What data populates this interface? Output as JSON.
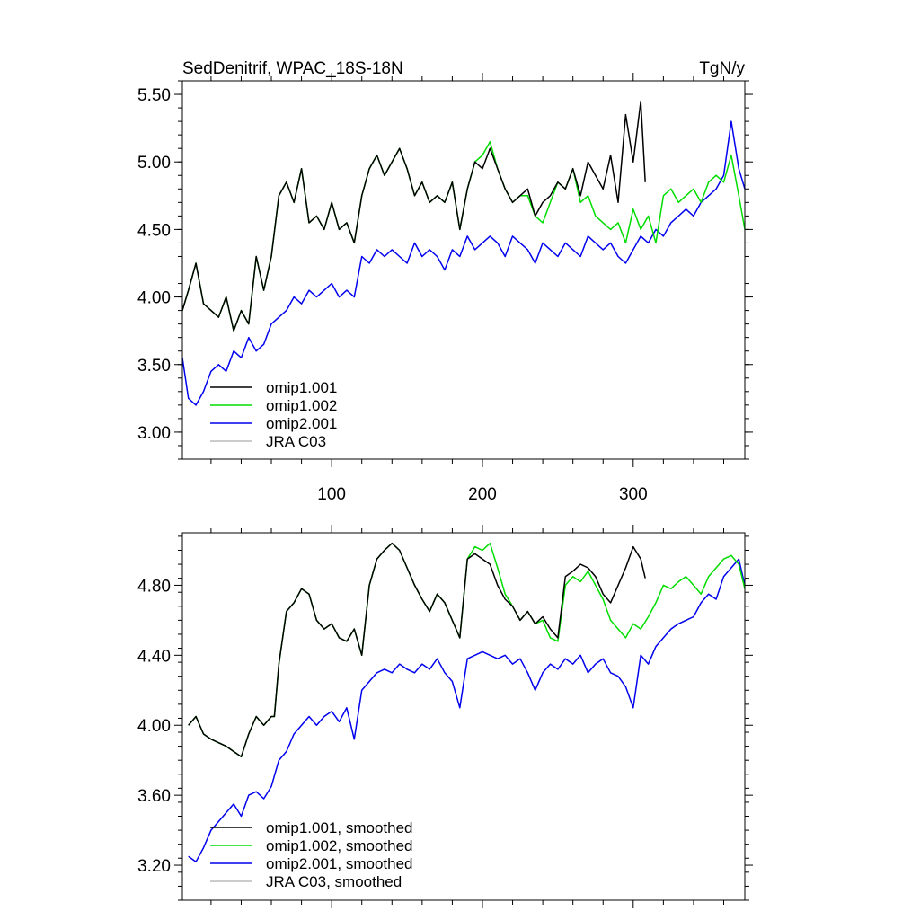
{
  "colors": {
    "omip1_001": "#000000",
    "omip1_002": "#00dd00",
    "omip2_001": "#0000ee",
    "jra_c03": "#bbbbbb"
  },
  "chart_data": [
    {
      "type": "line",
      "title": "SedDenitrif, WPAC_18S-18N",
      "units": "TgN/y",
      "xlim": [
        1,
        374
      ],
      "ylim": [
        2.8,
        5.6
      ],
      "xticks": [
        100,
        200,
        300
      ],
      "xtick_labels": [
        "100",
        "200",
        "300"
      ],
      "yticks": [
        3.0,
        3.5,
        4.0,
        4.5,
        5.0,
        5.5
      ],
      "ytick_labels": [
        "3.00",
        "3.50",
        "4.00",
        "4.50",
        "5.00",
        "5.50"
      ],
      "legend_position": "bottom-left",
      "series": [
        {
          "name": "omip1.001",
          "color_key": "omip1_001",
          "x": [
            1,
            5,
            10,
            15,
            20,
            25,
            30,
            35,
            40,
            45,
            50,
            55,
            60,
            65,
            70,
            75,
            80,
            85,
            90,
            95,
            100,
            105,
            110,
            115,
            120,
            125,
            130,
            135,
            140,
            145,
            150,
            155,
            160,
            165,
            170,
            175,
            180,
            185,
            190,
            195,
            200,
            205,
            210,
            215,
            220,
            225,
            230,
            235,
            240,
            245,
            250,
            255,
            260,
            265,
            270,
            275,
            280,
            285,
            290,
            295,
            300,
            305,
            308
          ],
          "y": [
            3.9,
            4.05,
            4.25,
            3.95,
            3.9,
            3.85,
            4.0,
            3.75,
            3.9,
            3.8,
            4.3,
            4.05,
            4.3,
            4.75,
            4.85,
            4.7,
            4.95,
            4.55,
            4.6,
            4.5,
            4.7,
            4.5,
            4.55,
            4.4,
            4.75,
            4.95,
            5.05,
            4.9,
            5.0,
            5.1,
            4.95,
            4.75,
            4.85,
            4.7,
            4.75,
            4.7,
            4.85,
            4.5,
            4.8,
            5.0,
            4.95,
            5.1,
            4.95,
            4.8,
            4.7,
            4.75,
            4.8,
            4.6,
            4.7,
            4.75,
            4.85,
            4.8,
            4.95,
            4.75,
            5.0,
            4.9,
            4.8,
            5.05,
            4.7,
            5.35,
            5.0,
            5.45,
            4.85
          ]
        },
        {
          "name": "omip1.002",
          "color_key": "omip1_002",
          "x": [
            1,
            5,
            10,
            15,
            20,
            25,
            30,
            35,
            40,
            45,
            50,
            55,
            60,
            65,
            70,
            75,
            80,
            85,
            90,
            95,
            100,
            105,
            110,
            115,
            120,
            125,
            130,
            135,
            140,
            145,
            150,
            155,
            160,
            165,
            170,
            175,
            180,
            185,
            190,
            195,
            200,
            205,
            210,
            215,
            220,
            225,
            230,
            235,
            240,
            245,
            250,
            255,
            260,
            265,
            270,
            275,
            280,
            285,
            290,
            295,
            300,
            305,
            310,
            315,
            320,
            325,
            330,
            335,
            340,
            345,
            350,
            355,
            360,
            365,
            370,
            374
          ],
          "y": [
            3.9,
            4.05,
            4.25,
            3.95,
            3.9,
            3.85,
            4.0,
            3.75,
            3.9,
            3.8,
            4.3,
            4.05,
            4.3,
            4.75,
            4.85,
            4.7,
            4.95,
            4.55,
            4.6,
            4.5,
            4.7,
            4.5,
            4.55,
            4.4,
            4.75,
            4.95,
            5.05,
            4.9,
            5.0,
            5.1,
            4.95,
            4.75,
            4.85,
            4.7,
            4.75,
            4.7,
            4.85,
            4.5,
            4.8,
            5.0,
            5.05,
            5.15,
            4.95,
            4.8,
            4.7,
            4.75,
            4.75,
            4.6,
            4.55,
            4.7,
            4.85,
            4.8,
            4.95,
            4.7,
            4.75,
            4.6,
            4.55,
            4.5,
            4.55,
            4.4,
            4.65,
            4.5,
            4.6,
            4.4,
            4.75,
            4.8,
            4.7,
            4.75,
            4.8,
            4.7,
            4.85,
            4.9,
            4.85,
            5.05,
            4.75,
            4.5
          ]
        },
        {
          "name": "omip2.001",
          "color_key": "omip2_001",
          "x": [
            1,
            5,
            10,
            15,
            20,
            25,
            30,
            35,
            40,
            45,
            50,
            55,
            60,
            65,
            70,
            75,
            80,
            85,
            90,
            95,
            100,
            105,
            110,
            115,
            120,
            125,
            130,
            135,
            140,
            145,
            150,
            155,
            160,
            165,
            170,
            175,
            180,
            185,
            190,
            195,
            200,
            205,
            210,
            215,
            220,
            225,
            230,
            235,
            240,
            245,
            250,
            255,
            260,
            265,
            270,
            275,
            280,
            285,
            290,
            295,
            300,
            305,
            310,
            315,
            320,
            325,
            330,
            335,
            340,
            345,
            350,
            355,
            360,
            365,
            370,
            374
          ],
          "y": [
            3.55,
            3.25,
            3.2,
            3.3,
            3.45,
            3.5,
            3.45,
            3.6,
            3.55,
            3.7,
            3.6,
            3.65,
            3.8,
            3.85,
            3.9,
            4.0,
            3.95,
            4.05,
            4.0,
            4.05,
            4.1,
            4.0,
            4.05,
            4.0,
            4.3,
            4.25,
            4.35,
            4.3,
            4.35,
            4.3,
            4.25,
            4.4,
            4.3,
            4.35,
            4.3,
            4.2,
            4.35,
            4.3,
            4.45,
            4.35,
            4.4,
            4.45,
            4.4,
            4.3,
            4.45,
            4.4,
            4.35,
            4.25,
            4.4,
            4.35,
            4.3,
            4.4,
            4.35,
            4.3,
            4.45,
            4.4,
            4.35,
            4.4,
            4.3,
            4.25,
            4.35,
            4.45,
            4.4,
            4.5,
            4.45,
            4.55,
            4.6,
            4.65,
            4.6,
            4.7,
            4.75,
            4.8,
            4.9,
            5.3,
            4.95,
            4.8
          ]
        }
      ]
    },
    {
      "type": "line",
      "title": "",
      "xlim": [
        1,
        374
      ],
      "ylim": [
        3.0,
        5.1
      ],
      "xticks": [
        100,
        200,
        300
      ],
      "yticks": [
        3.2,
        3.6,
        4.0,
        4.4,
        4.8
      ],
      "ytick_labels": [
        "3.20",
        "3.60",
        "4.00",
        "4.40",
        "4.80"
      ],
      "legend_position": "bottom-left",
      "series": [
        {
          "name": "omip1.001, smoothed",
          "color_key": "omip1_001",
          "x": [
            5,
            10,
            15,
            20,
            25,
            30,
            35,
            40,
            45,
            50,
            55,
            60,
            62,
            65,
            70,
            75,
            80,
            85,
            90,
            95,
            100,
            105,
            110,
            115,
            120,
            125,
            130,
            135,
            140,
            145,
            150,
            155,
            160,
            165,
            170,
            175,
            180,
            185,
            190,
            195,
            200,
            205,
            210,
            215,
            220,
            225,
            230,
            235,
            240,
            245,
            250,
            255,
            260,
            265,
            270,
            275,
            280,
            285,
            290,
            295,
            300,
            305,
            308
          ],
          "y": [
            4.0,
            4.05,
            3.95,
            3.92,
            3.9,
            3.88,
            3.85,
            3.82,
            3.95,
            4.05,
            4.0,
            4.05,
            4.05,
            4.35,
            4.65,
            4.7,
            4.78,
            4.75,
            4.6,
            4.55,
            4.58,
            4.5,
            4.48,
            4.55,
            4.4,
            4.8,
            4.95,
            5.0,
            5.04,
            5.0,
            4.9,
            4.8,
            4.72,
            4.65,
            4.75,
            4.7,
            4.6,
            4.5,
            4.95,
            4.98,
            4.95,
            4.92,
            4.8,
            4.72,
            4.68,
            4.6,
            4.65,
            4.58,
            4.62,
            4.55,
            4.5,
            4.85,
            4.88,
            4.92,
            4.9,
            4.85,
            4.75,
            4.7,
            4.8,
            4.9,
            5.02,
            4.95,
            4.84
          ]
        },
        {
          "name": "omip1.002, smoothed",
          "color_key": "omip1_002",
          "x": [
            5,
            10,
            15,
            20,
            25,
            30,
            35,
            40,
            45,
            50,
            55,
            60,
            62,
            65,
            70,
            75,
            80,
            85,
            90,
            95,
            100,
            105,
            110,
            115,
            120,
            125,
            130,
            135,
            140,
            145,
            150,
            155,
            160,
            165,
            170,
            175,
            180,
            185,
            190,
            195,
            200,
            205,
            210,
            215,
            220,
            225,
            230,
            235,
            240,
            245,
            250,
            255,
            260,
            265,
            270,
            275,
            280,
            285,
            290,
            295,
            300,
            305,
            310,
            315,
            320,
            325,
            330,
            335,
            340,
            345,
            350,
            355,
            360,
            365,
            370,
            374
          ],
          "y": [
            4.0,
            4.05,
            3.95,
            3.92,
            3.9,
            3.88,
            3.85,
            3.82,
            3.95,
            4.05,
            4.0,
            4.05,
            4.05,
            4.35,
            4.65,
            4.7,
            4.78,
            4.75,
            4.6,
            4.55,
            4.58,
            4.5,
            4.48,
            4.55,
            4.4,
            4.8,
            4.95,
            5.0,
            5.04,
            5.0,
            4.9,
            4.8,
            4.72,
            4.65,
            4.75,
            4.7,
            4.6,
            4.5,
            4.95,
            5.02,
            5.0,
            5.04,
            4.9,
            4.75,
            4.68,
            4.6,
            4.65,
            4.58,
            4.6,
            4.5,
            4.48,
            4.8,
            4.85,
            4.82,
            4.88,
            4.8,
            4.72,
            4.6,
            4.55,
            4.5,
            4.58,
            4.55,
            4.62,
            4.7,
            4.8,
            4.78,
            4.82,
            4.85,
            4.8,
            4.75,
            4.85,
            4.9,
            4.95,
            4.97,
            4.92,
            4.78
          ]
        },
        {
          "name": "omip2.001, smoothed",
          "color_key": "omip2_001",
          "x": [
            5,
            10,
            15,
            20,
            25,
            30,
            35,
            40,
            45,
            50,
            55,
            60,
            65,
            70,
            75,
            80,
            85,
            90,
            95,
            100,
            105,
            110,
            115,
            120,
            125,
            130,
            135,
            140,
            145,
            150,
            155,
            160,
            165,
            170,
            175,
            180,
            185,
            190,
            195,
            200,
            205,
            210,
            215,
            220,
            225,
            230,
            235,
            240,
            245,
            250,
            255,
            260,
            265,
            270,
            275,
            280,
            285,
            290,
            295,
            300,
            305,
            310,
            315,
            320,
            325,
            330,
            335,
            340,
            345,
            350,
            355,
            360,
            365,
            370,
            374
          ],
          "y": [
            3.25,
            3.22,
            3.3,
            3.4,
            3.45,
            3.5,
            3.55,
            3.48,
            3.6,
            3.62,
            3.58,
            3.65,
            3.8,
            3.85,
            3.95,
            4.0,
            4.05,
            4.0,
            4.05,
            4.08,
            4.02,
            4.1,
            3.92,
            4.2,
            4.25,
            4.3,
            4.32,
            4.3,
            4.35,
            4.32,
            4.3,
            4.35,
            4.32,
            4.38,
            4.3,
            4.25,
            4.1,
            4.38,
            4.4,
            4.42,
            4.4,
            4.38,
            4.4,
            4.35,
            4.38,
            4.3,
            4.2,
            4.3,
            4.35,
            4.32,
            4.38,
            4.35,
            4.4,
            4.3,
            4.35,
            4.38,
            4.3,
            4.28,
            4.22,
            4.1,
            4.4,
            4.35,
            4.45,
            4.5,
            4.55,
            4.58,
            4.6,
            4.62,
            4.7,
            4.75,
            4.72,
            4.85,
            4.9,
            4.95,
            4.8
          ]
        }
      ]
    }
  ],
  "legend_top": [
    "omip1.001",
    "omip1.002",
    "omip2.001",
    "JRA C03"
  ],
  "legend_bottom": [
    "omip1.001, smoothed",
    "omip1.002, smoothed",
    "omip2.001, smoothed",
    "JRA C03, smoothed"
  ]
}
